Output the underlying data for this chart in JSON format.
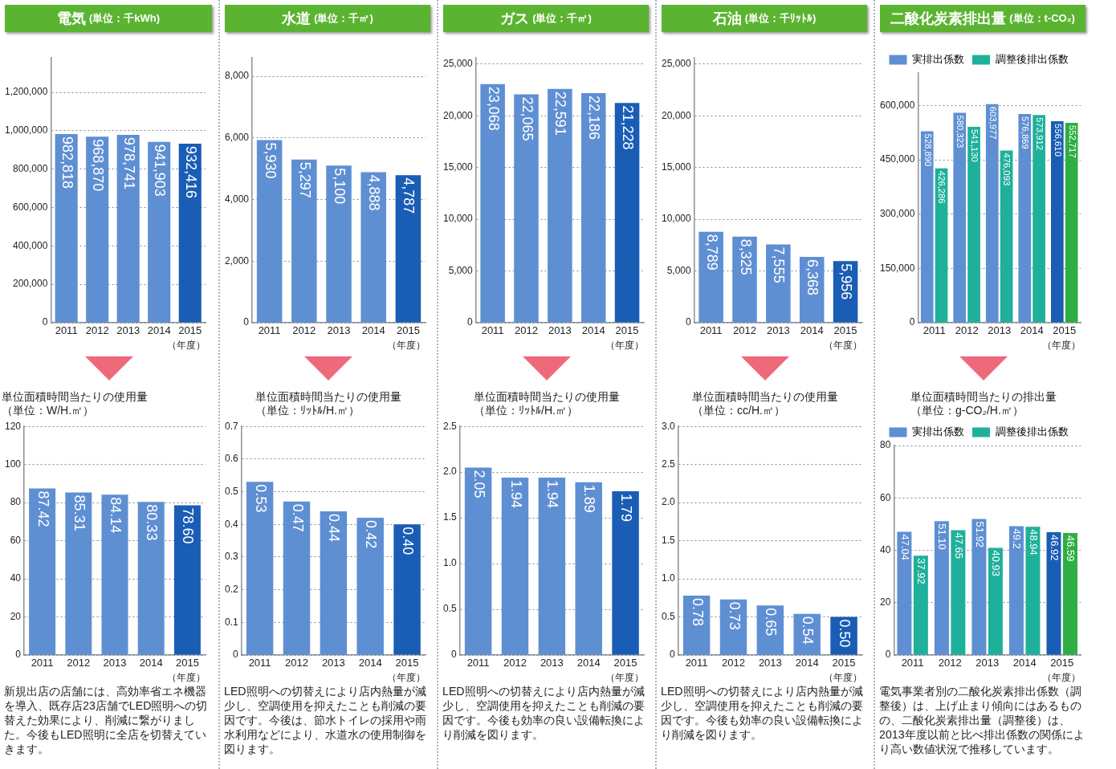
{
  "chart_data": [
    {
      "type": "bar",
      "title": "電気",
      "subtitle": "(単位：千kWh)",
      "xlabel": "（年度）",
      "categories": [
        "2011",
        "2012",
        "2013",
        "2014",
        "2015"
      ],
      "values": [
        982818,
        968870,
        978741,
        941903,
        932416
      ],
      "value_labels": [
        "982,818",
        "968,870",
        "978,741",
        "941,903",
        "932,416"
      ],
      "colors": [
        "#5f8fd3",
        "#5f8fd3",
        "#5f8fd3",
        "#5f8fd3",
        "#1a5db5"
      ],
      "ylim": [
        0,
        1380000
      ],
      "yticks": [
        0,
        {
          "value": 200000,
          "label": "200,000"
        },
        {
          "value": 400000,
          "label": "400,000"
        },
        {
          "value": 600000,
          "label": "600,000"
        },
        {
          "value": 800000,
          "label": "800,000"
        },
        {
          "value": 1000000,
          "label": "1,000,000"
        },
        {
          "value": 1200000,
          "label": "1,200,000"
        }
      ],
      "grid": "y"
    },
    {
      "type": "bar",
      "title": "単位面積時間当たりの使用量",
      "subtitle": "（単位：W/H.㎡）",
      "xlabel": "（年度）",
      "categories": [
        "2011",
        "2012",
        "2013",
        "2014",
        "2015"
      ],
      "values": [
        87.42,
        85.31,
        84.14,
        80.33,
        78.6
      ],
      "value_labels": [
        "87.42",
        "85.31",
        "84.14",
        "80.33",
        "78.60"
      ],
      "colors": [
        "#5f8fd3",
        "#5f8fd3",
        "#5f8fd3",
        "#5f8fd3",
        "#1a5db5"
      ],
      "ylim": [
        0,
        120
      ],
      "yticks": [
        0,
        20,
        40,
        60,
        80,
        100,
        120
      ],
      "grid": "y",
      "annotations": [
        "新規出店の店舗には、高効率省エネ機器を導入、既存店23店舗でLED照明への切替えた効果により、削減に繋がりました。今後もLED照明に全店を切替えていきます。"
      ]
    },
    {
      "type": "bar",
      "title": "水道",
      "subtitle": "(単位：千㎥)",
      "xlabel": "（年度）",
      "categories": [
        "2011",
        "2012",
        "2013",
        "2014",
        "2015"
      ],
      "values": [
        5930,
        5297,
        5100,
        4888,
        4787
      ],
      "value_labels": [
        "5,930",
        "5,297",
        "5,100",
        "4,888",
        "4,787"
      ],
      "colors": [
        "#5f8fd3",
        "#5f8fd3",
        "#5f8fd3",
        "#5f8fd3",
        "#1a5db5"
      ],
      "ylim": [
        0,
        8600
      ],
      "yticks": [
        0,
        {
          "value": 2000,
          "label": "2,000"
        },
        {
          "value": 4000,
          "label": "4,000"
        },
        {
          "value": 6000,
          "label": "6,000"
        },
        {
          "value": 8000,
          "label": "8,000"
        }
      ],
      "grid": "y"
    },
    {
      "type": "bar",
      "title": "単位面積時間当たりの使用量",
      "subtitle": "（単位：ﾘｯﾄﾙ/H.㎡）",
      "xlabel": "（年度）",
      "categories": [
        "2011",
        "2012",
        "2013",
        "2014",
        "2015"
      ],
      "values": [
        0.53,
        0.47,
        0.44,
        0.42,
        0.4
      ],
      "value_labels": [
        "0.53",
        "0.47",
        "0.44",
        "0.42",
        "0.40"
      ],
      "colors": [
        "#5f8fd3",
        "#5f8fd3",
        "#5f8fd3",
        "#5f8fd3",
        "#1a5db5"
      ],
      "ylim": [
        0,
        0.7
      ],
      "yticks": [
        0,
        0.1,
        0.2,
        0.3,
        0.4,
        0.5,
        0.6,
        0.7
      ],
      "grid": "y",
      "annotations": [
        "LED照明への切替えにより店内熱量が減少し、空調使用を抑えたことも削減の要因です。今後は、節水トイレの採用や雨水利用などにより、水道水の使用制御を図ります。"
      ]
    },
    {
      "type": "bar",
      "title": "ガス",
      "subtitle": "(単位：千㎥)",
      "xlabel": "（年度）",
      "categories": [
        "2011",
        "2012",
        "2013",
        "2014",
        "2015"
      ],
      "values": [
        23068,
        22065,
        22591,
        22186,
        21228
      ],
      "value_labels": [
        "23,068",
        "22,065",
        "22,591",
        "22,186",
        "21,228"
      ],
      "colors": [
        "#5f8fd3",
        "#5f8fd3",
        "#5f8fd3",
        "#5f8fd3",
        "#1a5db5"
      ],
      "ylim": [
        0,
        25600
      ],
      "yticks": [
        0,
        {
          "value": 5000,
          "label": "5,000"
        },
        {
          "value": 10000,
          "label": "10,000"
        },
        {
          "value": 15000,
          "label": "15,000"
        },
        {
          "value": 20000,
          "label": "20,000"
        },
        {
          "value": 25000,
          "label": "25,000"
        }
      ],
      "grid": "y"
    },
    {
      "type": "bar",
      "title": "単位面積時間当たりの使用量",
      "subtitle": "（単位：ﾘｯﾄﾙ/H.㎡）",
      "xlabel": "（年度）",
      "categories": [
        "2011",
        "2012",
        "2013",
        "2014",
        "2015"
      ],
      "values": [
        2.05,
        1.94,
        1.94,
        1.89,
        1.79
      ],
      "value_labels": [
        "2.05",
        "1.94",
        "1.94",
        "1.89",
        "1.79"
      ],
      "colors": [
        "#5f8fd3",
        "#5f8fd3",
        "#5f8fd3",
        "#5f8fd3",
        "#1a5db5"
      ],
      "ylim": [
        0,
        2.5
      ],
      "yticks": [
        0,
        0.5,
        {
          "value": 1,
          "label": "1.0"
        },
        1.5,
        {
          "value": 2,
          "label": "2.0"
        },
        2.5
      ],
      "grid": "y",
      "annotations": [
        "LED照明への切替えにより店内熱量が減少し、空調使用を抑えたことも削減の要因です。今後も効率の良い設備転換により削減を図ります。"
      ]
    },
    {
      "type": "bar",
      "title": "石油",
      "subtitle": "(単位：千ﾘｯﾄﾙ)",
      "xlabel": "（年度）",
      "categories": [
        "2011",
        "2012",
        "2013",
        "2014",
        "2015"
      ],
      "values": [
        8789,
        8325,
        7555,
        6368,
        5956
      ],
      "value_labels": [
        "8,789",
        "8,325",
        "7,555",
        "6,368",
        "5,956"
      ],
      "colors": [
        "#5f8fd3",
        "#5f8fd3",
        "#5f8fd3",
        "#5f8fd3",
        "#1a5db5"
      ],
      "ylim": [
        0,
        25600
      ],
      "yticks": [
        0,
        {
          "value": 5000,
          "label": "5,000"
        },
        {
          "value": 10000,
          "label": "10,000"
        },
        {
          "value": 15000,
          "label": "15,000"
        },
        {
          "value": 20000,
          "label": "20,000"
        },
        {
          "value": 25000,
          "label": "25,000"
        }
      ],
      "grid": "y"
    },
    {
      "type": "bar",
      "title": "単位面積時間当たりの使用量",
      "subtitle": "（単位：cc/H.㎡）",
      "xlabel": "（年度）",
      "categories": [
        "2011",
        "2012",
        "2013",
        "2014",
        "2015"
      ],
      "values": [
        0.78,
        0.73,
        0.65,
        0.54,
        0.5
      ],
      "value_labels": [
        "0.78",
        "0.73",
        "0.65",
        "0.54",
        "0.50"
      ],
      "colors": [
        "#5f8fd3",
        "#5f8fd3",
        "#5f8fd3",
        "#5f8fd3",
        "#1a5db5"
      ],
      "ylim": [
        0,
        3
      ],
      "yticks": [
        0,
        0.5,
        {
          "value": 1,
          "label": "1.0"
        },
        1.5,
        {
          "value": 2,
          "label": "2.0"
        },
        2.5,
        {
          "value": 3,
          "label": "3.0"
        }
      ],
      "grid": "y",
      "annotations": [
        "LED照明への切替えにより店内熱量が減少し、空調使用を抑えたことも削減の要因です。今後も効率の良い設備転換により削減を図ります。"
      ]
    },
    {
      "type": "bar",
      "title": "二酸化炭素排出量",
      "subtitle": "(単位：t-CO₂)",
      "xlabel": "（年度）",
      "categories": [
        "2011",
        "2012",
        "2013",
        "2014",
        "2015"
      ],
      "legend": "top",
      "series": [
        {
          "name": "実排出係数",
          "color": "#5f8fd3",
          "colors": [
            "#5f8fd3",
            "#5f8fd3",
            "#5f8fd3",
            "#5f8fd3",
            "#1a5db5"
          ],
          "values": [
            528890,
            580323,
            603977,
            576869,
            556610
          ],
          "value_labels": [
            "528,890",
            "580,323",
            "603,977",
            "576,869",
            "556,610"
          ]
        },
        {
          "name": "調整後排出係数",
          "color": "#1fb09b",
          "colors": [
            "#1fb09b",
            "#1fb09b",
            "#1fb09b",
            "#1fb09b",
            "#2fae43"
          ],
          "values": [
            426286,
            541130,
            476093,
            573912,
            552717
          ],
          "value_labels": [
            "426,286",
            "541,130",
            "476,093",
            "573,912",
            "552,717"
          ]
        }
      ],
      "ylim": [
        0,
        690000
      ],
      "yticks": [
        0,
        {
          "value": 150000,
          "label": "150,000"
        },
        {
          "value": 300000,
          "label": "300,000"
        },
        {
          "value": 450000,
          "label": "450,000"
        },
        {
          "value": 600000,
          "label": "600,000"
        }
      ],
      "grid": "y"
    },
    {
      "type": "bar",
      "title": "単位面積時間当たりの排出量",
      "subtitle": "（単位：g-CO₂/H.㎡）",
      "xlabel": "（年度）",
      "categories": [
        "2011",
        "2012",
        "2013",
        "2014",
        "2015"
      ],
      "legend": "top",
      "series": [
        {
          "name": "実排出係数",
          "color": "#5f8fd3",
          "colors": [
            "#5f8fd3",
            "#5f8fd3",
            "#5f8fd3",
            "#5f8fd3",
            "#1a5db5"
          ],
          "values": [
            47.04,
            51.1,
            51.92,
            49.2,
            46.92
          ],
          "value_labels": [
            "47.04",
            "51.10",
            "51.92",
            "49.2",
            "46.92"
          ]
        },
        {
          "name": "調整後排出係数",
          "color": "#1fb09b",
          "colors": [
            "#1fb09b",
            "#1fb09b",
            "#1fb09b",
            "#1fb09b",
            "#2fae43"
          ],
          "values": [
            37.92,
            47.65,
            40.93,
            48.94,
            46.59
          ],
          "value_labels": [
            "37.92",
            "47.65",
            "40.93",
            "48.94",
            "46.59"
          ]
        }
      ],
      "ylim": [
        0,
        80
      ],
      "yticks": [
        0,
        20,
        40,
        60,
        80
      ],
      "grid": "y",
      "annotations": [
        "電気事業者別の二酸化炭素排出係数（調整後）は、上げ止まり傾向にはあるものの、二酸化炭素排出量（調整後）は、2013年度以前と比べ排出係数の関係により高い数値状況で推移しています。"
      ]
    }
  ]
}
